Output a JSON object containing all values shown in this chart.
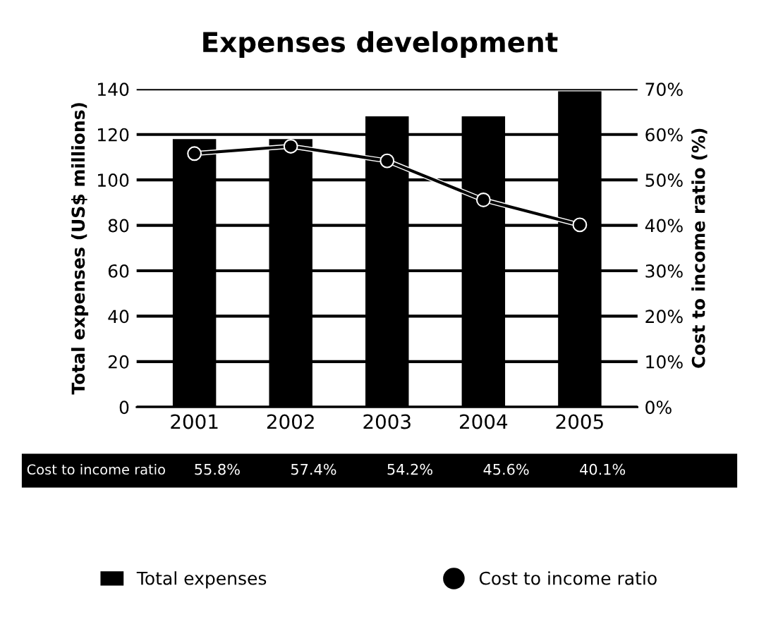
{
  "chart_data": {
    "type": "bar",
    "title": "Expenses development",
    "categories": [
      "2001",
      "2002",
      "2003",
      "2004",
      "2005"
    ],
    "ylabel": "Total expenses (US$ millions)",
    "y2label": "Cost to income ratio (%)",
    "series": [
      {
        "name": "Total expenses",
        "color": "#000000",
        "values": [
          118,
          118,
          128,
          128,
          139
        ]
      },
      {
        "name": "Cost to income ratio",
        "type": "line",
        "axis": "y2",
        "color": "#000000",
        "marker": "circle",
        "values": [
          55.8,
          57.4,
          54.2,
          45.6,
          40.1
        ],
        "value_labels": [
          "55.8%",
          "57.4%",
          "54.2%",
          "45.6%",
          "40.1%"
        ]
      }
    ],
    "ylim": [
      0,
      140
    ],
    "yticks": [
      0,
      20,
      40,
      60,
      80,
      100,
      120,
      140
    ],
    "y2lim": [
      0,
      70
    ],
    "y2ticks": [
      {
        "value": 0,
        "label": "0%"
      },
      {
        "value": 10,
        "label": "10%"
      },
      {
        "value": 20,
        "label": "20%"
      },
      {
        "value": 30,
        "label": "30%"
      },
      {
        "value": 40,
        "label": "40%"
      },
      {
        "value": 50,
        "label": "50%"
      },
      {
        "value": 60,
        "label": "60%"
      },
      {
        "value": 70,
        "label": "70%"
      }
    ],
    "grid": "y",
    "legend": "bottom"
  }
}
